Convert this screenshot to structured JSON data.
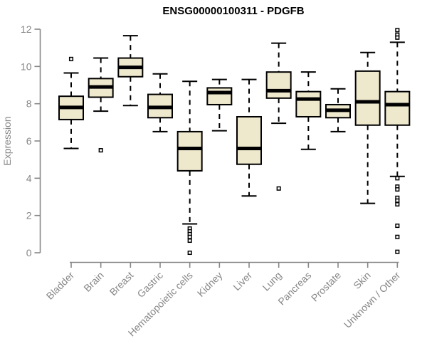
{
  "chart_data": {
    "type": "boxplot",
    "title": "ENSG00000100311 - PDGFB",
    "xlabel": "",
    "ylabel": "Expression",
    "ylim": [
      0,
      12
    ],
    "yticks": [
      0,
      2,
      4,
      6,
      8,
      10,
      12
    ],
    "grid": false,
    "legend": null,
    "categories": [
      "Bladder",
      "Brain",
      "Breast",
      "Gastric",
      "Hematopoietic cells",
      "Kidney",
      "Liver",
      "Lung",
      "Pancreas",
      "Prostate",
      "Skin",
      "Unknown / Other"
    ],
    "boxes": [
      {
        "category": "Bladder",
        "whisker_low": 5.6,
        "q1": 7.15,
        "median": 7.8,
        "q3": 8.4,
        "whisker_high": 9.65,
        "outliers": [
          10.4
        ]
      },
      {
        "category": "Brain",
        "whisker_low": 7.6,
        "q1": 8.35,
        "median": 8.9,
        "q3": 9.35,
        "whisker_high": 10.45,
        "outliers": [
          5.5
        ]
      },
      {
        "category": "Breast",
        "whisker_low": 7.9,
        "q1": 9.45,
        "median": 9.95,
        "q3": 10.45,
        "whisker_high": 11.65,
        "outliers": []
      },
      {
        "category": "Gastric",
        "whisker_low": 6.5,
        "q1": 7.25,
        "median": 7.8,
        "q3": 8.5,
        "whisker_high": 9.6,
        "outliers": []
      },
      {
        "category": "Hematopoietic cells",
        "whisker_low": 1.55,
        "q1": 4.4,
        "median": 5.6,
        "q3": 6.5,
        "whisker_high": 9.2,
        "outliers": [
          1.3,
          1.15,
          1.0,
          0.85,
          0.65,
          0.0
        ]
      },
      {
        "category": "Kidney",
        "whisker_low": 6.55,
        "q1": 7.95,
        "median": 8.6,
        "q3": 8.85,
        "whisker_high": 9.3,
        "outliers": []
      },
      {
        "category": "Liver",
        "whisker_low": 3.05,
        "q1": 4.75,
        "median": 5.6,
        "q3": 7.3,
        "whisker_high": 9.3,
        "outliers": []
      },
      {
        "category": "Lung",
        "whisker_low": 6.95,
        "q1": 8.3,
        "median": 8.7,
        "q3": 9.7,
        "whisker_high": 11.25,
        "outliers": [
          3.45
        ]
      },
      {
        "category": "Pancreas",
        "whisker_low": 5.55,
        "q1": 7.3,
        "median": 8.25,
        "q3": 8.65,
        "whisker_high": 9.7,
        "outliers": []
      },
      {
        "category": "Prostate",
        "whisker_low": 6.5,
        "q1": 7.25,
        "median": 7.65,
        "q3": 7.95,
        "whisker_high": 8.8,
        "outliers": []
      },
      {
        "category": "Skin",
        "whisker_low": 2.65,
        "q1": 6.85,
        "median": 8.1,
        "q3": 9.75,
        "whisker_high": 10.75,
        "outliers": []
      },
      {
        "category": "Unknown / Other",
        "whisker_low": 4.1,
        "q1": 6.85,
        "median": 7.95,
        "q3": 8.65,
        "whisker_high": 11.3,
        "outliers": [
          11.95,
          11.7,
          11.55,
          4.0,
          3.55,
          3.4,
          2.95,
          2.8,
          2.6,
          1.45,
          0.85,
          0.05
        ]
      }
    ],
    "colors": {
      "box_fill": "#EEE8CD",
      "box_stroke": "#000000",
      "median": "#000000",
      "whisker": "#000000",
      "outlier_stroke": "#000000",
      "outlier_fill": "#ffffff",
      "axis": "#878787",
      "tick_label": "#878787",
      "title": "#000000"
    }
  }
}
